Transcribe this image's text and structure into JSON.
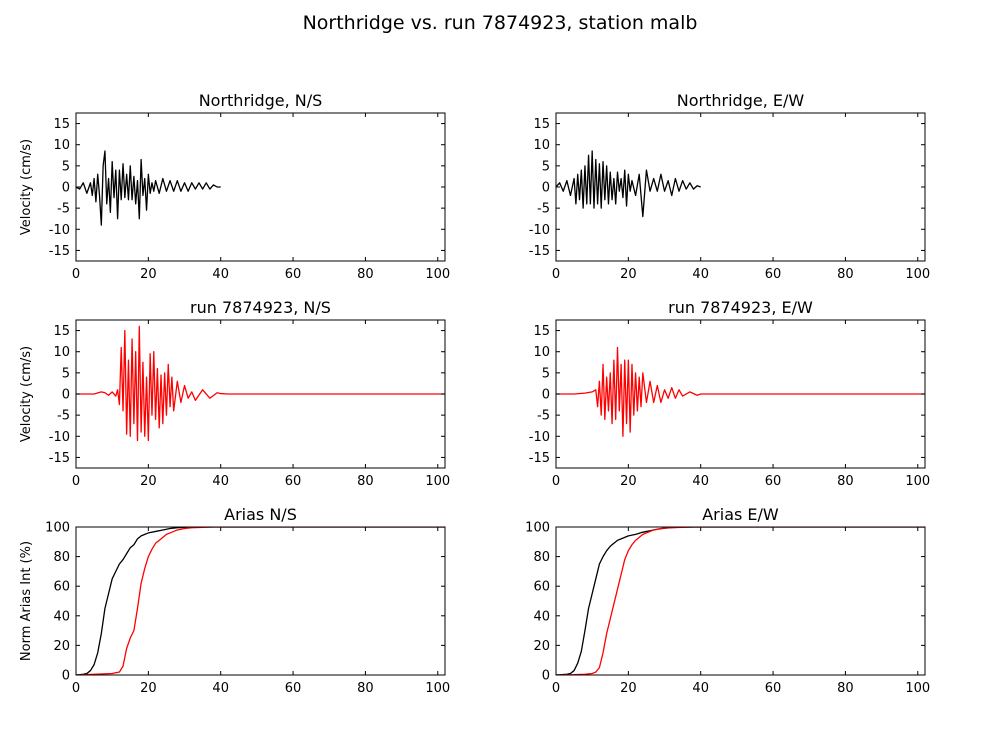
{
  "figure": {
    "title": "Northridge vs. run 7874923, station malb"
  },
  "colors": {
    "observed": "#000000",
    "simulated": "#ff0000"
  },
  "chart_data": [
    {
      "id": "vel-ns-obs",
      "type": "line",
      "title": "Northridge, N/S",
      "ylabel": "Velocity (cm/s)",
      "xlim": [
        0,
        102
      ],
      "ylim": [
        -17.5,
        17.5
      ],
      "xticks": [
        0,
        20,
        40,
        60,
        80,
        100
      ],
      "yticks": [
        -15,
        -10,
        -5,
        0,
        5,
        10,
        15
      ],
      "series": [
        {
          "color": "#000000",
          "x": [
            0,
            1,
            2,
            3,
            4,
            4.5,
            5,
            5.5,
            6,
            6.5,
            7,
            7.5,
            8,
            8.5,
            9,
            9.5,
            10,
            10.5,
            11,
            11.5,
            12,
            12.5,
            13,
            13.5,
            14,
            14.5,
            15,
            15.5,
            16,
            16.5,
            17,
            17.5,
            18,
            18.5,
            19,
            19.5,
            20,
            20.5,
            21,
            21.5,
            22,
            23,
            24,
            25,
            26,
            27,
            28,
            29,
            30,
            31,
            32,
            33,
            34,
            35,
            36,
            37,
            38,
            39,
            40
          ],
          "y": [
            0,
            -0.5,
            1,
            -1.5,
            1,
            -2,
            2,
            -3.5,
            3,
            -2,
            -9,
            5,
            8.5,
            -4,
            2,
            -6,
            6,
            -2.5,
            4,
            -7.5,
            4,
            -3,
            5.5,
            -2.5,
            3,
            -3,
            5,
            -3,
            2.5,
            -4,
            1.5,
            -7.5,
            6.5,
            -2,
            2,
            -5.5,
            3,
            -1.5,
            1,
            -1,
            1.5,
            -1.5,
            2,
            -1,
            1.5,
            -1,
            1.5,
            -1,
            1,
            -1,
            1,
            -0.5,
            1,
            -0.5,
            1,
            -0.5,
            0.5,
            0,
            0
          ]
        }
      ]
    },
    {
      "id": "vel-ew-obs",
      "type": "line",
      "title": "Northridge, E/W",
      "ylabel": "",
      "xlim": [
        0,
        102
      ],
      "ylim": [
        -17.5,
        17.5
      ],
      "xticks": [
        0,
        20,
        40,
        60,
        80,
        100
      ],
      "yticks": [
        -15,
        -10,
        -5,
        0,
        5,
        10,
        15
      ],
      "series": [
        {
          "color": "#000000",
          "x": [
            0,
            1,
            2,
            3,
            4,
            5,
            5.5,
            6,
            6.5,
            7,
            7.5,
            8,
            8.5,
            9,
            9.5,
            10,
            10.5,
            11,
            11.5,
            12,
            12.5,
            13,
            13.5,
            14,
            14.5,
            15,
            15.5,
            16,
            16.5,
            17,
            17.5,
            18,
            18.5,
            19,
            19.5,
            20,
            20.5,
            21,
            22,
            23,
            24,
            25,
            26,
            27,
            28,
            29,
            30,
            31,
            32,
            33,
            34,
            35,
            36,
            37,
            38,
            39,
            40
          ],
          "y": [
            0,
            1,
            -1,
            1.5,
            -2,
            2,
            -4,
            3,
            -3,
            4,
            -5,
            5,
            -4,
            7.5,
            -4,
            8.5,
            -5,
            6.5,
            -4,
            5.5,
            -5,
            6,
            -3,
            5,
            -4,
            3.5,
            -3,
            2,
            -4,
            3.5,
            -1,
            2,
            -2.5,
            4,
            -4.5,
            3,
            -1,
            1.5,
            -2,
            3,
            -7,
            4,
            -1,
            2,
            -1,
            3,
            -1,
            1.5,
            -2,
            2,
            -1,
            1.5,
            -0.5,
            1,
            -0.5,
            0.3,
            0
          ]
        }
      ]
    },
    {
      "id": "vel-ns-sim",
      "type": "line",
      "title": "run 7874923, N/S",
      "ylabel": "Velocity (cm/s)",
      "xlim": [
        0,
        102
      ],
      "ylim": [
        -17.5,
        17.5
      ],
      "xticks": [
        0,
        20,
        40,
        60,
        80,
        100
      ],
      "yticks": [
        -15,
        -10,
        -5,
        0,
        5,
        10,
        15
      ],
      "series": [
        {
          "color": "#ff0000",
          "x": [
            0,
            5,
            7,
            8,
            9,
            10,
            11,
            11.5,
            12,
            12.5,
            13,
            13.5,
            14,
            14.5,
            15,
            15.5,
            16,
            16.5,
            17,
            17.5,
            18,
            18.5,
            19,
            19.5,
            20,
            20.5,
            21,
            21.5,
            22,
            22.5,
            23,
            23.5,
            24,
            24.5,
            25,
            25.5,
            26,
            26.5,
            27,
            28,
            29,
            30,
            31,
            32,
            33,
            35,
            37,
            39,
            40,
            42,
            50,
            60,
            80,
            102
          ],
          "y": [
            0,
            0,
            0.5,
            0.3,
            -0.3,
            0.5,
            -0.5,
            1,
            -2.5,
            11,
            -4,
            15,
            -9.5,
            8,
            -10,
            13,
            -7,
            10,
            -11,
            16,
            -9,
            7.5,
            -10,
            4,
            -11,
            9.5,
            -5,
            10,
            -6,
            6,
            -8,
            4.5,
            -7,
            5,
            -5,
            7,
            -3,
            4,
            -4,
            3,
            -2,
            2,
            -1,
            0.5,
            -1.5,
            1,
            -1,
            0.3,
            0.1,
            0,
            0,
            0,
            0,
            0
          ]
        }
      ]
    },
    {
      "id": "vel-ew-sim",
      "type": "line",
      "title": "run 7874923, E/W",
      "ylabel": "",
      "xlim": [
        0,
        102
      ],
      "ylim": [
        -17.5,
        17.5
      ],
      "xticks": [
        0,
        20,
        40,
        60,
        80,
        100
      ],
      "yticks": [
        -15,
        -10,
        -5,
        0,
        5,
        10,
        15
      ],
      "series": [
        {
          "color": "#ff0000",
          "x": [
            0,
            5,
            8,
            10,
            11,
            11.5,
            12,
            12.5,
            13,
            13.5,
            14,
            14.5,
            15,
            15.5,
            16,
            16.5,
            17,
            17.5,
            18,
            18.5,
            19,
            19.5,
            20,
            20.5,
            21,
            21.5,
            22,
            22.5,
            23,
            23.5,
            24,
            25,
            26,
            27,
            28,
            29,
            30,
            31,
            32,
            33,
            34,
            35,
            37,
            39,
            40,
            42,
            50,
            60,
            80,
            102
          ],
          "y": [
            0,
            0,
            0.2,
            0.5,
            1,
            -3,
            3,
            -5,
            7,
            -6,
            4,
            -4,
            5,
            -7,
            8,
            -6,
            11,
            -4,
            7,
            -10,
            8,
            -7,
            8,
            -9,
            7,
            -5,
            5,
            -4,
            4,
            -3,
            5,
            -2,
            3,
            -2,
            2,
            -2,
            1,
            -1,
            1.5,
            -1,
            1,
            -0.5,
            0.5,
            -0.3,
            0,
            0,
            0,
            0,
            0,
            0
          ]
        }
      ]
    },
    {
      "id": "arias-ns",
      "type": "line",
      "title": "Arias N/S",
      "ylabel": "Norm Arias Int (%)",
      "xlim": [
        0,
        102
      ],
      "ylim": [
        0,
        100
      ],
      "xticks": [
        0,
        20,
        40,
        60,
        80,
        100
      ],
      "yticks": [
        0,
        20,
        40,
        60,
        80,
        100
      ],
      "series": [
        {
          "color": "#000000",
          "x": [
            0,
            2,
            3,
            4,
            5,
            6,
            7,
            8,
            9,
            10,
            11,
            12,
            13,
            14,
            15,
            16,
            17,
            18,
            19,
            20,
            22,
            24,
            26,
            28,
            30,
            35,
            40,
            102
          ],
          "y": [
            0,
            0.5,
            1,
            3,
            7,
            15,
            28,
            45,
            55,
            65,
            70,
            75,
            78,
            82,
            86,
            88,
            92,
            94,
            95,
            96,
            97,
            98,
            99,
            99.5,
            99.8,
            100,
            100,
            100
          ]
        },
        {
          "color": "#ff0000",
          "x": [
            0,
            5,
            10,
            12,
            13,
            13.5,
            14,
            15,
            16,
            17,
            18,
            19,
            20,
            21,
            22,
            23,
            24,
            25,
            26,
            27,
            28,
            29,
            30,
            32,
            35,
            38,
            40,
            102
          ],
          "y": [
            0,
            0.5,
            1,
            2,
            6,
            12,
            18,
            25,
            30,
            45,
            62,
            72,
            80,
            85,
            89,
            91,
            93,
            95,
            96,
            97,
            98,
            98.5,
            99,
            99.5,
            99.8,
            100,
            100,
            100
          ]
        }
      ]
    },
    {
      "id": "arias-ew",
      "type": "line",
      "title": "Arias E/W",
      "ylabel": "",
      "xlim": [
        0,
        102
      ],
      "ylim": [
        0,
        100
      ],
      "xticks": [
        0,
        20,
        40,
        60,
        80,
        100
      ],
      "yticks": [
        0,
        20,
        40,
        60,
        80,
        100
      ],
      "series": [
        {
          "color": "#000000",
          "x": [
            0,
            3,
            4,
            5,
            6,
            7,
            8,
            9,
            10,
            11,
            12,
            13,
            14,
            15,
            16,
            17,
            18,
            19,
            20,
            22,
            24,
            26,
            28,
            30,
            32,
            35,
            40,
            102
          ],
          "y": [
            0,
            0.5,
            1,
            3,
            8,
            16,
            30,
            45,
            55,
            65,
            75,
            80,
            84,
            87,
            89,
            91,
            92,
            93,
            94,
            95,
            96.5,
            97.5,
            98.5,
            99.2,
            99.6,
            99.9,
            100,
            100
          ]
        },
        {
          "color": "#ff0000",
          "x": [
            0,
            5,
            8,
            10,
            11,
            12,
            13,
            14,
            15,
            16,
            17,
            18,
            19,
            20,
            21,
            22,
            23,
            24,
            25,
            26,
            27,
            28,
            29,
            30,
            32,
            35,
            38,
            40,
            102
          ],
          "y": [
            0,
            0.2,
            0.5,
            1,
            2,
            5,
            15,
            28,
            38,
            48,
            58,
            68,
            78,
            84,
            88,
            91,
            93,
            95,
            96,
            97,
            98,
            98.5,
            99,
            99.3,
            99.6,
            99.8,
            100,
            100,
            100
          ]
        }
      ]
    }
  ]
}
